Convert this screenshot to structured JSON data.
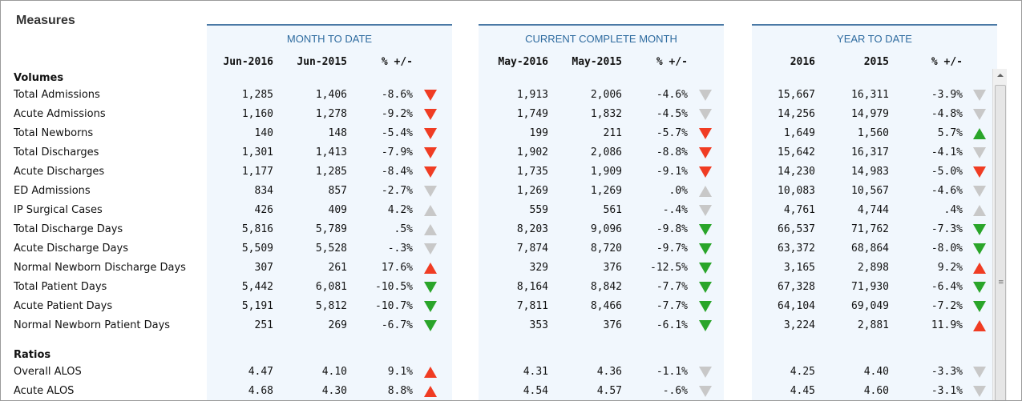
{
  "title": "Measures",
  "colors": {
    "down_red": "#f03c23",
    "up_green": "#2aa52a",
    "neutral_gray": "#c8c8c8",
    "up_red": "#f03c23",
    "down_green": "#2aa52a",
    "header_blue": "#2e6b9f"
  },
  "panels": [
    {
      "title": "MONTH TO DATE",
      "col1": "Jun-2016",
      "col2": "Jun-2015",
      "col3": "% +/-"
    },
    {
      "title": "CURRENT COMPLETE MONTH",
      "col1": "May-2016",
      "col2": "May-2015",
      "col3": "% +/-"
    },
    {
      "title": "YEAR TO DATE",
      "col1": "2016",
      "col2": "2015",
      "col3": "% +/-"
    }
  ],
  "sections": [
    {
      "title": "Volumes",
      "rows": [
        {
          "label": "Total Admissions",
          "vals": [
            [
              "1,285",
              "1,406",
              "-8.6%",
              "down-red"
            ],
            [
              "1,913",
              "2,006",
              "-4.6%",
              "down-gray"
            ],
            [
              "15,667",
              "16,311",
              "-3.9%",
              "down-gray"
            ]
          ]
        },
        {
          "label": "Acute Admissions",
          "vals": [
            [
              "1,160",
              "1,278",
              "-9.2%",
              "down-red"
            ],
            [
              "1,749",
              "1,832",
              "-4.5%",
              "down-gray"
            ],
            [
              "14,256",
              "14,979",
              "-4.8%",
              "down-gray"
            ]
          ]
        },
        {
          "label": "Total Newborns",
          "vals": [
            [
              "140",
              "148",
              "-5.4%",
              "down-red"
            ],
            [
              "199",
              "211",
              "-5.7%",
              "down-red"
            ],
            [
              "1,649",
              "1,560",
              "5.7%",
              "up-green"
            ]
          ]
        },
        {
          "label": "Total Discharges",
          "vals": [
            [
              "1,301",
              "1,413",
              "-7.9%",
              "down-red"
            ],
            [
              "1,902",
              "2,086",
              "-8.8%",
              "down-red"
            ],
            [
              "15,642",
              "16,317",
              "-4.1%",
              "down-gray"
            ]
          ]
        },
        {
          "label": "Acute Discharges",
          "vals": [
            [
              "1,177",
              "1,285",
              "-8.4%",
              "down-red"
            ],
            [
              "1,735",
              "1,909",
              "-9.1%",
              "down-red"
            ],
            [
              "14,230",
              "14,983",
              "-5.0%",
              "down-red"
            ]
          ]
        },
        {
          "label": "ED Admissions",
          "vals": [
            [
              "834",
              "857",
              "-2.7%",
              "down-gray"
            ],
            [
              "1,269",
              "1,269",
              ".0%",
              "up-gray"
            ],
            [
              "10,083",
              "10,567",
              "-4.6%",
              "down-gray"
            ]
          ]
        },
        {
          "label": "IP Surgical Cases",
          "vals": [
            [
              "426",
              "409",
              "4.2%",
              "up-gray"
            ],
            [
              "559",
              "561",
              "-.4%",
              "down-gray"
            ],
            [
              "4,761",
              "4,744",
              ".4%",
              "up-gray"
            ]
          ]
        },
        {
          "label": "Total Discharge Days",
          "vals": [
            [
              "5,816",
              "5,789",
              ".5%",
              "up-gray"
            ],
            [
              "8,203",
              "9,096",
              "-9.8%",
              "down-green"
            ],
            [
              "66,537",
              "71,762",
              "-7.3%",
              "down-green"
            ]
          ]
        },
        {
          "label": "Acute Discharge Days",
          "vals": [
            [
              "5,509",
              "5,528",
              "-.3%",
              "down-gray"
            ],
            [
              "7,874",
              "8,720",
              "-9.7%",
              "down-green"
            ],
            [
              "63,372",
              "68,864",
              "-8.0%",
              "down-green"
            ]
          ]
        },
        {
          "label": "Normal Newborn Discharge Days",
          "vals": [
            [
              "307",
              "261",
              "17.6%",
              "up-red"
            ],
            [
              "329",
              "376",
              "-12.5%",
              "down-green"
            ],
            [
              "3,165",
              "2,898",
              "9.2%",
              "up-red"
            ]
          ]
        },
        {
          "label": "Total Patient Days",
          "vals": [
            [
              "5,442",
              "6,081",
              "-10.5%",
              "down-green"
            ],
            [
              "8,164",
              "8,842",
              "-7.7%",
              "down-green"
            ],
            [
              "67,328",
              "71,930",
              "-6.4%",
              "down-green"
            ]
          ]
        },
        {
          "label": "Acute Patient Days",
          "vals": [
            [
              "5,191",
              "5,812",
              "-10.7%",
              "down-green"
            ],
            [
              "7,811",
              "8,466",
              "-7.7%",
              "down-green"
            ],
            [
              "64,104",
              "69,049",
              "-7.2%",
              "down-green"
            ]
          ]
        },
        {
          "label": "Normal Newborn Patient Days",
          "vals": [
            [
              "251",
              "269",
              "-6.7%",
              "down-green"
            ],
            [
              "353",
              "376",
              "-6.1%",
              "down-green"
            ],
            [
              "3,224",
              "2,881",
              "11.9%",
              "up-red"
            ]
          ]
        }
      ]
    },
    {
      "title": "Ratios",
      "rows": [
        {
          "label": "Overall ALOS",
          "vals": [
            [
              "4.47",
              "4.10",
              "9.1%",
              "up-red"
            ],
            [
              "4.31",
              "4.36",
              "-1.1%",
              "down-gray"
            ],
            [
              "4.25",
              "4.40",
              "-3.3%",
              "down-gray"
            ]
          ]
        },
        {
          "label": "Acute ALOS",
          "vals": [
            [
              "4.68",
              "4.30",
              "8.8%",
              "up-red"
            ],
            [
              "4.54",
              "4.57",
              "-.6%",
              "down-gray"
            ],
            [
              "4.45",
              "4.60",
              "-3.1%",
              "down-gray"
            ]
          ]
        }
      ]
    }
  ],
  "scrollbar": {
    "grip": "≡"
  }
}
